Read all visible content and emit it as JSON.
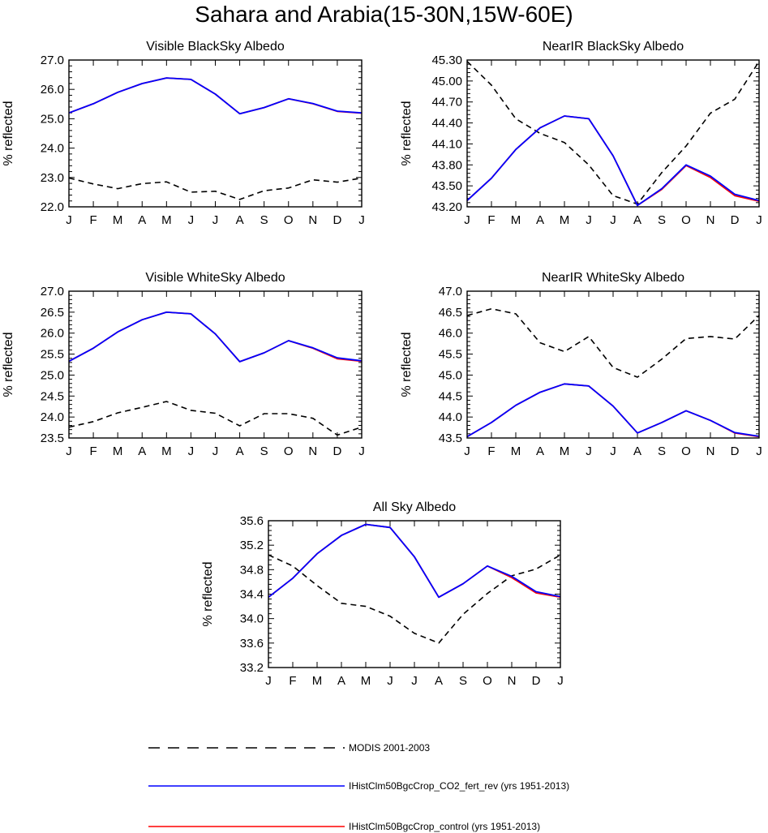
{
  "title": "Sahara and Arabia(15-30N,15W-60E)",
  "legend": [
    {
      "label": "MODIS 2001-2003",
      "color": "#000000",
      "dash": true
    },
    {
      "label": "IHistClm50BgcCrop_CO2_fert_rev (yrs 1951-2013)",
      "color": "#0000ff",
      "dash": false
    },
    {
      "label": "IHistClm50BgcCrop_control (yrs 1951-2013)",
      "color": "#ff0000",
      "dash": false
    }
  ],
  "chart_data": [
    {
      "type": "line",
      "title": "Visible BlackSky Albedo",
      "ylabel": "% reflected",
      "categories": [
        "J",
        "F",
        "M",
        "A",
        "M",
        "J",
        "J",
        "A",
        "S",
        "O",
        "N",
        "D",
        "J"
      ],
      "ylim": [
        22.0,
        27.0
      ],
      "yticks": [
        "27.0",
        "26.0",
        "25.0",
        "24.0",
        "23.0",
        "22.0"
      ],
      "series": [
        {
          "name": "MODIS 2001-2003",
          "color": "#000000",
          "dash": true,
          "values": [
            22.98,
            22.78,
            22.62,
            22.79,
            22.85,
            22.5,
            22.53,
            22.25,
            22.55,
            22.64,
            22.92,
            22.84,
            22.98
          ]
        },
        {
          "name": "IHistClm50BgcCrop_control (yrs 1951-2013)",
          "color": "#ff0000",
          "dash": false,
          "values": [
            25.2,
            25.51,
            25.9,
            26.2,
            26.39,
            26.34,
            25.84,
            25.17,
            25.38,
            25.68,
            25.51,
            25.25,
            25.19
          ]
        },
        {
          "name": "IHistClm50BgcCrop_CO2_fert_rev (yrs 1951-2013)",
          "color": "#0000ff",
          "dash": false,
          "values": [
            25.2,
            25.51,
            25.9,
            26.2,
            26.39,
            26.34,
            25.84,
            25.17,
            25.38,
            25.68,
            25.52,
            25.26,
            25.2
          ]
        }
      ]
    },
    {
      "type": "line",
      "title": "NearIR BlackSky Albedo",
      "ylabel": "% reflected",
      "categories": [
        "J",
        "F",
        "M",
        "A",
        "M",
        "J",
        "J",
        "A",
        "S",
        "O",
        "N",
        "D",
        "J"
      ],
      "ylim": [
        43.2,
        45.3
      ],
      "yticks": [
        "45.30",
        "45.00",
        "44.70",
        "44.40",
        "44.10",
        "43.80",
        "43.50",
        "43.20"
      ],
      "series": [
        {
          "name": "MODIS 2001-2003",
          "color": "#000000",
          "dash": true,
          "values": [
            45.28,
            44.94,
            44.46,
            44.25,
            44.12,
            43.8,
            43.36,
            43.24,
            43.69,
            44.07,
            44.54,
            44.74,
            45.28
          ]
        },
        {
          "name": "IHistClm50BgcCrop_control (yrs 1951-2013)",
          "color": "#ff0000",
          "dash": false,
          "values": [
            43.29,
            43.61,
            44.02,
            44.33,
            44.5,
            44.46,
            43.93,
            43.22,
            43.45,
            43.79,
            43.62,
            43.36,
            43.28
          ]
        },
        {
          "name": "IHistClm50BgcCrop_CO2_fert_rev (yrs 1951-2013)",
          "color": "#0000ff",
          "dash": false,
          "values": [
            43.29,
            43.61,
            44.02,
            44.33,
            44.5,
            44.46,
            43.93,
            43.22,
            43.46,
            43.8,
            43.64,
            43.38,
            43.29
          ]
        }
      ]
    },
    {
      "type": "line",
      "title": "Visible WhiteSky Albedo",
      "ylabel": "% reflected",
      "categories": [
        "J",
        "F",
        "M",
        "A",
        "M",
        "J",
        "J",
        "A",
        "S",
        "O",
        "N",
        "D",
        "J"
      ],
      "ylim": [
        23.5,
        27.0
      ],
      "yticks": [
        "27.0",
        "26.5",
        "26.0",
        "25.5",
        "25.0",
        "24.5",
        "24.0",
        "23.5"
      ],
      "series": [
        {
          "name": "MODIS 2001-2003",
          "color": "#000000",
          "dash": true,
          "values": [
            23.76,
            23.89,
            24.1,
            24.23,
            24.37,
            24.16,
            24.09,
            23.79,
            24.08,
            24.08,
            23.97,
            23.57,
            23.76
          ]
        },
        {
          "name": "IHistClm50BgcCrop_control (yrs 1951-2013)",
          "color": "#ff0000",
          "dash": false,
          "values": [
            25.33,
            25.64,
            26.03,
            26.32,
            26.5,
            26.46,
            25.98,
            25.32,
            25.53,
            25.82,
            25.64,
            25.39,
            25.33
          ]
        },
        {
          "name": "IHistClm50BgcCrop_CO2_fert_rev (yrs 1951-2013)",
          "color": "#0000ff",
          "dash": false,
          "values": [
            25.33,
            25.64,
            26.03,
            26.32,
            26.5,
            26.46,
            25.98,
            25.32,
            25.53,
            25.82,
            25.65,
            25.41,
            25.34
          ]
        }
      ]
    },
    {
      "type": "line",
      "title": "NearIR WhiteSky Albedo",
      "ylabel": "% reflected",
      "categories": [
        "J",
        "F",
        "M",
        "A",
        "M",
        "J",
        "J",
        "A",
        "S",
        "O",
        "N",
        "D",
        "J"
      ],
      "ylim": [
        43.5,
        47.0
      ],
      "yticks": [
        "47.0",
        "46.5",
        "46.0",
        "45.5",
        "45.0",
        "44.5",
        "44.0",
        "43.5"
      ],
      "series": [
        {
          "name": "MODIS 2001-2003",
          "color": "#000000",
          "dash": true,
          "values": [
            46.42,
            46.58,
            46.46,
            45.77,
            45.56,
            45.92,
            45.18,
            44.95,
            45.38,
            45.87,
            45.92,
            45.86,
            46.42
          ]
        },
        {
          "name": "IHistClm50BgcCrop_control (yrs 1951-2013)",
          "color": "#ff0000",
          "dash": false,
          "values": [
            43.53,
            43.87,
            44.28,
            44.59,
            44.79,
            44.74,
            44.26,
            43.62,
            43.87,
            44.15,
            43.92,
            43.62,
            43.53
          ]
        },
        {
          "name": "IHistClm50BgcCrop_CO2_fert_rev (yrs 1951-2013)",
          "color": "#0000ff",
          "dash": false,
          "values": [
            43.53,
            43.87,
            44.28,
            44.59,
            44.79,
            44.74,
            44.26,
            43.62,
            43.87,
            44.15,
            43.92,
            43.63,
            43.54
          ]
        }
      ]
    },
    {
      "type": "line",
      "title": "All Sky Albedo",
      "ylabel": "% reflected",
      "categories": [
        "J",
        "F",
        "M",
        "A",
        "M",
        "J",
        "J",
        "A",
        "S",
        "O",
        "N",
        "D",
        "J"
      ],
      "ylim": [
        33.2,
        35.6
      ],
      "yticks": [
        "35.6",
        "35.2",
        "34.8",
        "34.4",
        "34.0",
        "33.6",
        "33.2"
      ],
      "series": [
        {
          "name": "MODIS 2001-2003",
          "color": "#000000",
          "dash": true,
          "values": [
            35.04,
            34.86,
            34.54,
            34.25,
            34.2,
            34.04,
            33.76,
            33.6,
            34.07,
            34.41,
            34.7,
            34.81,
            35.04
          ]
        },
        {
          "name": "IHistClm50BgcCrop_control (yrs 1951-2013)",
          "color": "#ff0000",
          "dash": false,
          "values": [
            34.35,
            34.66,
            35.06,
            35.36,
            35.54,
            35.49,
            35.01,
            34.35,
            34.57,
            34.86,
            34.67,
            34.42,
            34.35
          ]
        },
        {
          "name": "IHistClm50BgcCrop_CO2_fert_rev (yrs 1951-2013)",
          "color": "#0000ff",
          "dash": false,
          "values": [
            34.35,
            34.66,
            35.06,
            35.36,
            35.54,
            35.49,
            35.01,
            34.35,
            34.57,
            34.86,
            34.69,
            34.44,
            34.36
          ]
        }
      ]
    }
  ]
}
